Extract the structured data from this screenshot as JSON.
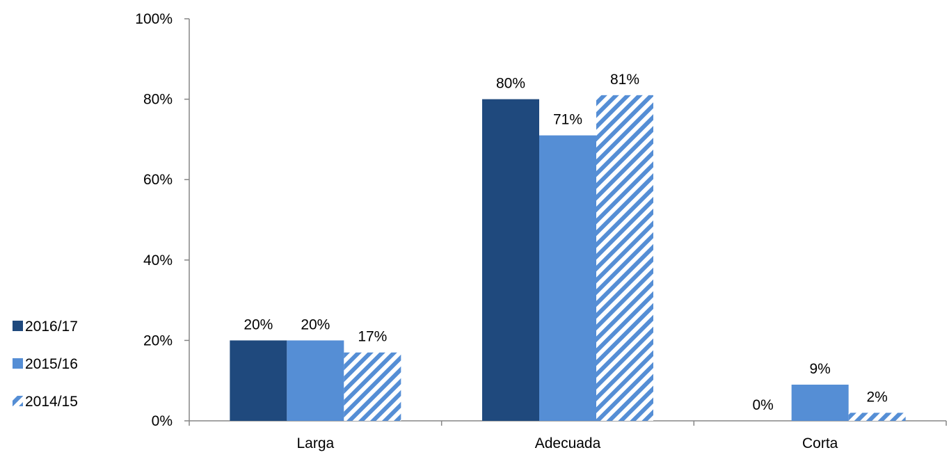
{
  "chart_data": {
    "type": "bar",
    "categories": [
      "Larga",
      "Adecuada",
      "Corta"
    ],
    "series": [
      {
        "name": "2016/17",
        "values": [
          20,
          80,
          0
        ],
        "labels": [
          "20%",
          "80%",
          "0%"
        ],
        "color": "#1F497D",
        "pattern": "solid"
      },
      {
        "name": "2015/16",
        "values": [
          20,
          71,
          9
        ],
        "labels": [
          "20%",
          "71%",
          "9%"
        ],
        "color": "#558ED5",
        "pattern": "solid"
      },
      {
        "name": "2014/15",
        "values": [
          17,
          81,
          2
        ],
        "labels": [
          "17%",
          "81%",
          "2%"
        ],
        "color": "#558ED5",
        "pattern": "diagonal-stripes"
      }
    ],
    "ylim": [
      0,
      100
    ],
    "yticks": [
      "0%",
      "20%",
      "40%",
      "60%",
      "80%",
      "100%"
    ],
    "ytick_values": [
      0,
      20,
      40,
      60,
      80,
      100
    ],
    "grid": false,
    "legend_position": "left",
    "title": "",
    "xlabel": "",
    "ylabel": ""
  }
}
